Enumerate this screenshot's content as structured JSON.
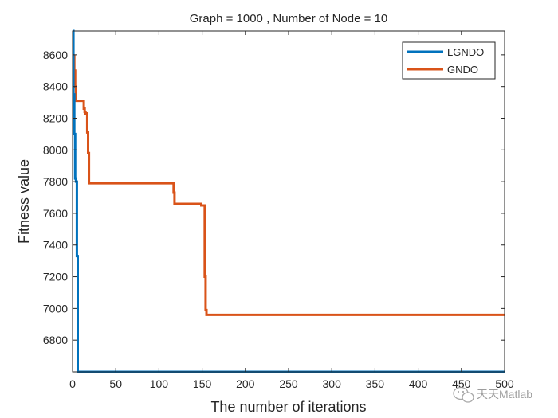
{
  "chart_data": {
    "type": "line",
    "title": "Graph = 1000 , Number of Node = 10",
    "xlabel": "The number of iterations",
    "ylabel": "Fitness value",
    "xlim": [
      0,
      500
    ],
    "ylim": [
      6600,
      8750
    ],
    "xticks": [
      0,
      50,
      100,
      150,
      200,
      250,
      300,
      350,
      400,
      450,
      500
    ],
    "yticks": [
      6800,
      7000,
      7200,
      7400,
      7600,
      7800,
      8000,
      8200,
      8400,
      8600
    ],
    "grid": false,
    "legend_position": "top-right",
    "series": [
      {
        "name": "LGNDO",
        "color": "#0072BD",
        "x": [
          0,
          1,
          1,
          2,
          2,
          3,
          3,
          4,
          4,
          5,
          5,
          6,
          6,
          500
        ],
        "y": [
          8750,
          8750,
          8350,
          8350,
          8100,
          8100,
          7820,
          7820,
          7800,
          7800,
          7330,
          7330,
          6600,
          6600
        ]
      },
      {
        "name": "GNDO",
        "color": "#D95319",
        "x": [
          2,
          2,
          3,
          3,
          4,
          4,
          13,
          13,
          14,
          14,
          15,
          15,
          17,
          17,
          18,
          18,
          19,
          19,
          117,
          117,
          118,
          118,
          149,
          149,
          153,
          153,
          154,
          154,
          155,
          155,
          500
        ],
        "y": [
          8600,
          8500,
          8500,
          8400,
          8400,
          8310,
          8310,
          8260,
          8260,
          8240,
          8240,
          8230,
          8230,
          8110,
          8110,
          7980,
          7980,
          7790,
          7790,
          7730,
          7730,
          7660,
          7660,
          7650,
          7650,
          7200,
          7200,
          6990,
          6990,
          6960,
          6960
        ]
      }
    ]
  },
  "watermark": {
    "text": "天天Matlab",
    "icon": "wechat-icon"
  }
}
